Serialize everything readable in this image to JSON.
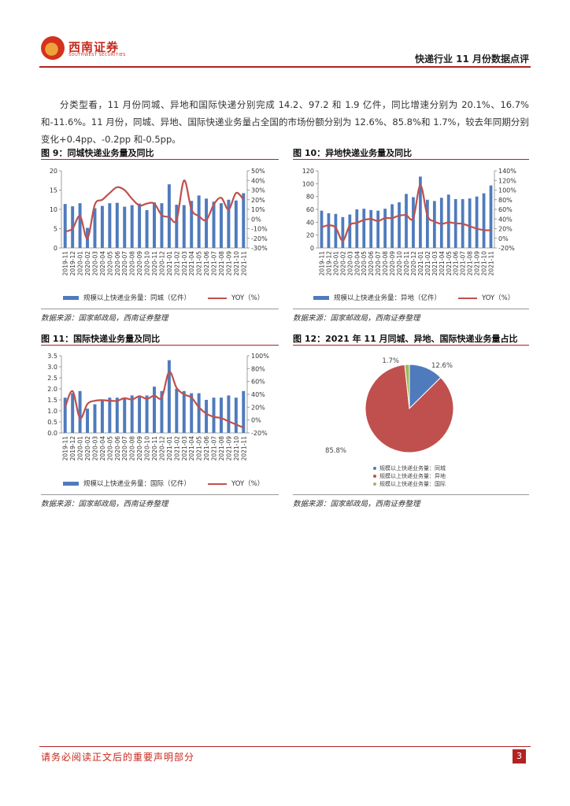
{
  "header": {
    "logo_text": "西南证券",
    "logo_sub": "SOUTHWEST SECURITIES",
    "report_title": "快递行业 11 月份数据点评"
  },
  "paragraph": "分类型看，11 月份同城、异地和国际快递分别完成 14.2、97.2 和 1.9 亿件，同比增速分别为 20.1%、16.7%和-11.6%。11 月份，同城、异地、国际快递业务量占全国的市场份额分别为 12.6%、85.8%和 1.7%，较去年同期分别变化+0.4pp、-0.2pp 和-0.5pp。",
  "figures": {
    "fig9": {
      "title": "图 9：同城快递业务量及同比",
      "legend_bar": "规模以上快递业务量：同城（亿件）",
      "legend_line": "YOY（%）",
      "source": "数据来源：国家邮政局，西南证券整理"
    },
    "fig10": {
      "title": "图 10：异地快递业务量及同比",
      "legend_bar": "规模以上快递业务量：异地（亿件）",
      "legend_line": "YOY（%）",
      "source": "数据来源：国家邮政局，西南证券整理"
    },
    "fig11": {
      "title": "图 11：国际快递业务量及同比",
      "legend_bar": "规模以上快递业务量：国际（亿件）",
      "legend_line": "YOY（%）",
      "source": "数据来源：国家邮政局，西南证券整理"
    },
    "fig12": {
      "title": "图 12：2021 年 11 月同城、异地、国际快递业务量占比",
      "source": "数据来源：国家邮政局，西南证券整理"
    }
  },
  "colors": {
    "bar": "#4f7bbd",
    "line": "#c0504d",
    "pie_intl": "#9bbb59"
  },
  "chart_data": [
    {
      "id": "fig9",
      "type": "bar+line",
      "title": "图 9：同城快递业务量及同比",
      "categories": [
        "2019-11",
        "2019-12",
        "2020-01",
        "2020-02",
        "2020-03",
        "2020-04",
        "2020-05",
        "2020-06",
        "2020-07",
        "2020-08",
        "2020-09",
        "2020-10",
        "2020-11",
        "2020-12",
        "2021-01",
        "2021-02",
        "2021-03",
        "2021-04",
        "2021-05",
        "2021-06",
        "2021-07",
        "2021-08",
        "2021-09",
        "2021-10",
        "2021-11"
      ],
      "series": [
        {
          "name": "规模以上快递业务量：同城（亿件）",
          "axis": "left",
          "values": [
            11.4,
            10.8,
            11.6,
            5.2,
            10.3,
            10.9,
            11.6,
            11.7,
            10.7,
            11.1,
            11.5,
            9.8,
            11.8,
            11.6,
            16.5,
            11.2,
            11.1,
            12.2,
            13.6,
            12.8,
            12.0,
            11.6,
            12.5,
            12.3,
            14.2
          ]
        },
        {
          "name": "YOY（%）",
          "axis": "right",
          "values": [
            -13,
            -10,
            3,
            -20,
            15,
            20,
            27,
            33,
            30,
            21,
            14,
            16,
            16,
            4,
            2,
            -1,
            40,
            10,
            3,
            -1,
            15,
            22,
            10,
            27,
            20.1
          ]
        }
      ],
      "ylim_left": [
        0,
        20
      ],
      "yticks_left": [
        0,
        5,
        10,
        15,
        20
      ],
      "ylim_right": [
        -30,
        50
      ],
      "yticks_right": [
        "-30%",
        "-20%",
        "-10%",
        "0%",
        "10%",
        "20%",
        "30%",
        "40%",
        "50%"
      ]
    },
    {
      "id": "fig10",
      "type": "bar+line",
      "title": "图 10：异地快递业务量及同比",
      "categories": [
        "2019-11",
        "2019-12",
        "2020-01",
        "2020-02",
        "2020-03",
        "2020-04",
        "2020-05",
        "2020-06",
        "2020-07",
        "2020-08",
        "2020-09",
        "2020-10",
        "2020-11",
        "2020-12",
        "2021-01",
        "2021-02",
        "2021-03",
        "2021-04",
        "2021-05",
        "2021-06",
        "2021-07",
        "2021-08",
        "2021-09",
        "2021-10",
        "2021-11"
      ],
      "series": [
        {
          "name": "规模以上快递业务量：异地（亿件）",
          "axis": "left",
          "values": [
            58,
            54,
            53,
            48,
            52,
            60,
            61,
            59,
            58,
            61,
            68,
            71,
            84,
            79,
            111,
            75,
            73,
            78,
            83,
            76,
            76,
            77,
            80,
            85,
            97.2
          ]
        },
        {
          "name": "YOY（%）",
          "axis": "right",
          "values": [
            23,
            27,
            22,
            -5,
            27,
            32,
            38,
            40,
            36,
            42,
            42,
            47,
            48,
            42,
            110,
            47,
            35,
            30,
            33,
            31,
            30,
            25,
            20,
            17,
            16.7
          ]
        }
      ],
      "ylim_left": [
        0,
        120
      ],
      "yticks_left": [
        0,
        20,
        40,
        60,
        80,
        100,
        120
      ],
      "ylim_right": [
        -20,
        140
      ],
      "yticks_right": [
        "-20%",
        "0%",
        "20%",
        "40%",
        "60%",
        "80%",
        "100%",
        "120%",
        "140%"
      ]
    },
    {
      "id": "fig11",
      "type": "bar+line",
      "title": "图 11：国际快递业务量及同比",
      "categories": [
        "2019-11",
        "2019-12",
        "2020-01",
        "2020-02",
        "2020-03",
        "2020-04",
        "2020-05",
        "2020-06",
        "2020-07",
        "2020-08",
        "2020-09",
        "2020-10",
        "2020-11",
        "2020-12",
        "2021-01",
        "2021-02",
        "2021-03",
        "2021-04",
        "2021-05",
        "2021-06",
        "2021-07",
        "2021-08",
        "2021-09",
        "2021-10",
        "2021-11"
      ],
      "series": [
        {
          "name": "规模以上快递业务量：国际（亿件）",
          "axis": "left",
          "values": [
            1.6,
            1.8,
            1.9,
            1.1,
            1.3,
            1.5,
            1.6,
            1.6,
            1.6,
            1.7,
            1.7,
            1.7,
            2.1,
            1.9,
            3.3,
            2.0,
            1.9,
            1.8,
            1.8,
            1.5,
            1.6,
            1.6,
            1.7,
            1.6,
            1.9
          ]
        },
        {
          "name": "YOY（%）",
          "axis": "right",
          "values": [
            20,
            45,
            3,
            25,
            30,
            31,
            30,
            30,
            34,
            32,
            37,
            33,
            38,
            35,
            75,
            50,
            40,
            35,
            20,
            10,
            5,
            3,
            -2,
            -7,
            -11.6
          ]
        }
      ],
      "ylim_left": [
        0,
        3.5
      ],
      "yticks_left": [
        "0.0",
        "0.5",
        "1.0",
        "1.5",
        "2.0",
        "2.5",
        "3.0",
        "3.5"
      ],
      "ylim_right": [
        -20,
        100
      ],
      "yticks_right": [
        "-20%",
        "0%",
        "20%",
        "40%",
        "60%",
        "80%",
        "100%"
      ]
    },
    {
      "id": "fig12",
      "type": "pie",
      "title": "图 12：2021 年 11 月同城、异地、国际快递业务量占比",
      "labels": [
        "规模以上快递业务量：同城",
        "规模以上快递业务量：异地",
        "规模以上快递业务量：国际"
      ],
      "values": [
        12.6,
        85.8,
        1.7
      ],
      "value_labels": [
        "12.6%",
        "85.8%",
        "1.7%"
      ],
      "colors": [
        "#4f7bbd",
        "#c0504d",
        "#9bbb59"
      ]
    }
  ],
  "footer": {
    "disclaimer": "请务必阅读正文后的重要声明部分",
    "page": "3"
  }
}
